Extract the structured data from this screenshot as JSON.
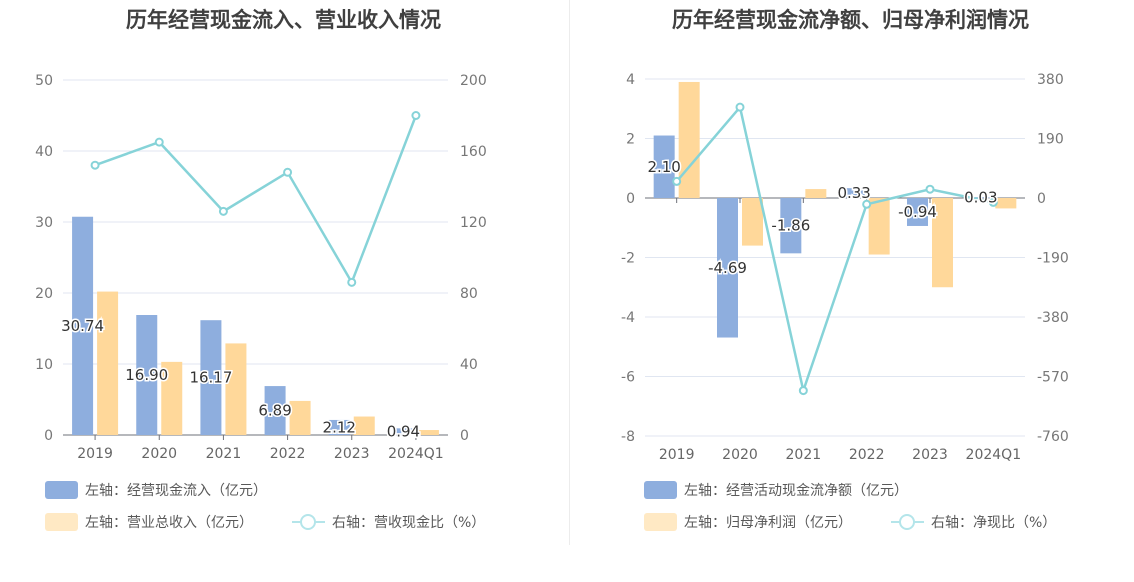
{
  "colors": {
    "blue": "#8eaede",
    "orange": "#ffd89a",
    "line": "#86d3d8",
    "legend_line": "#b4e5ea"
  },
  "chart_data": [
    {
      "type": "bar+line",
      "title": "历年经营现金流入、营业收入情况",
      "categories": [
        "2019",
        "2020",
        "2021",
        "2022",
        "2023",
        "2024Q1"
      ],
      "left_axis": {
        "ticks": [
          "0",
          "10",
          "20",
          "30",
          "40",
          "50"
        ],
        "range": [
          0,
          50
        ]
      },
      "right_axis": {
        "ticks": [
          "0",
          "40",
          "80",
          "120",
          "160",
          "200"
        ],
        "range": [
          0,
          200
        ]
      },
      "series": [
        {
          "name": "左轴：经营现金流入（亿元）",
          "axis": "left",
          "kind": "bar",
          "color": "#8eaede",
          "values": [
            30.74,
            16.9,
            16.17,
            6.89,
            2.12,
            0.94
          ],
          "labels": [
            "30.74",
            "16.90",
            "16.17",
            "6.89",
            "2.12",
            "0.94"
          ]
        },
        {
          "name": "左轴：营业总收入（亿元）",
          "axis": "left",
          "kind": "bar",
          "color": "#ffd89a",
          "values": [
            20.2,
            10.3,
            12.9,
            4.8,
            2.6,
            0.7
          ]
        },
        {
          "name": "右轴：营收现金比（%）",
          "axis": "right",
          "kind": "line",
          "color": "#86d3d8",
          "values": [
            152,
            165,
            126,
            148,
            86,
            180
          ]
        }
      ]
    },
    {
      "type": "bar+line",
      "title": "历年经营现金流净额、归母净利润情况",
      "categories": [
        "2019",
        "2020",
        "2021",
        "2022",
        "2023",
        "2024Q1"
      ],
      "left_axis": {
        "ticks": [
          "-8",
          "-6",
          "-4",
          "-2",
          "0",
          "2",
          "4"
        ],
        "range": [
          -8,
          4
        ]
      },
      "right_axis": {
        "ticks": [
          "-760",
          "-570",
          "-380",
          "-190",
          "0",
          "190",
          "380"
        ],
        "range": [
          -760,
          380
        ]
      },
      "series": [
        {
          "name": "左轴：经营活动现金流净额（亿元）",
          "axis": "left",
          "kind": "bar",
          "color": "#8eaede",
          "values": [
            2.1,
            -4.69,
            -1.86,
            0.33,
            -0.94,
            0.03
          ],
          "labels": [
            "2.10",
            "-4.69",
            "-1.86",
            "0.33",
            "-0.94",
            "0.03"
          ]
        },
        {
          "name": "左轴：归母净利润（亿元）",
          "axis": "left",
          "kind": "bar",
          "color": "#ffd89a",
          "values": [
            3.9,
            -1.6,
            0.3,
            -1.9,
            -3.0,
            -0.35
          ]
        },
        {
          "name": "右轴：净现比（%）",
          "axis": "right",
          "kind": "line",
          "color": "#86d3d8",
          "values": [
            53,
            290,
            -615,
            -20,
            28,
            -14
          ]
        }
      ]
    }
  ]
}
